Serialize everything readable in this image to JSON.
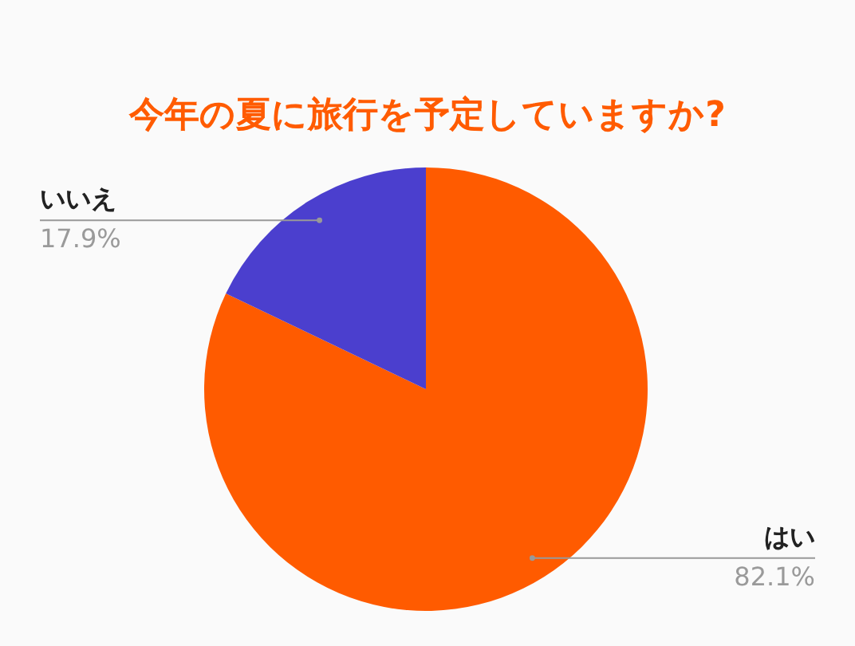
{
  "chart_data": {
    "type": "pie",
    "title": "今年の夏に旅行を予定していますか?",
    "categories": [
      "はい",
      "いいえ"
    ],
    "values": [
      82.1,
      17.9
    ],
    "colors": [
      "#ff5b00",
      "#4b3fce"
    ],
    "value_labels": [
      "82.1%",
      "17.9%"
    ]
  }
}
